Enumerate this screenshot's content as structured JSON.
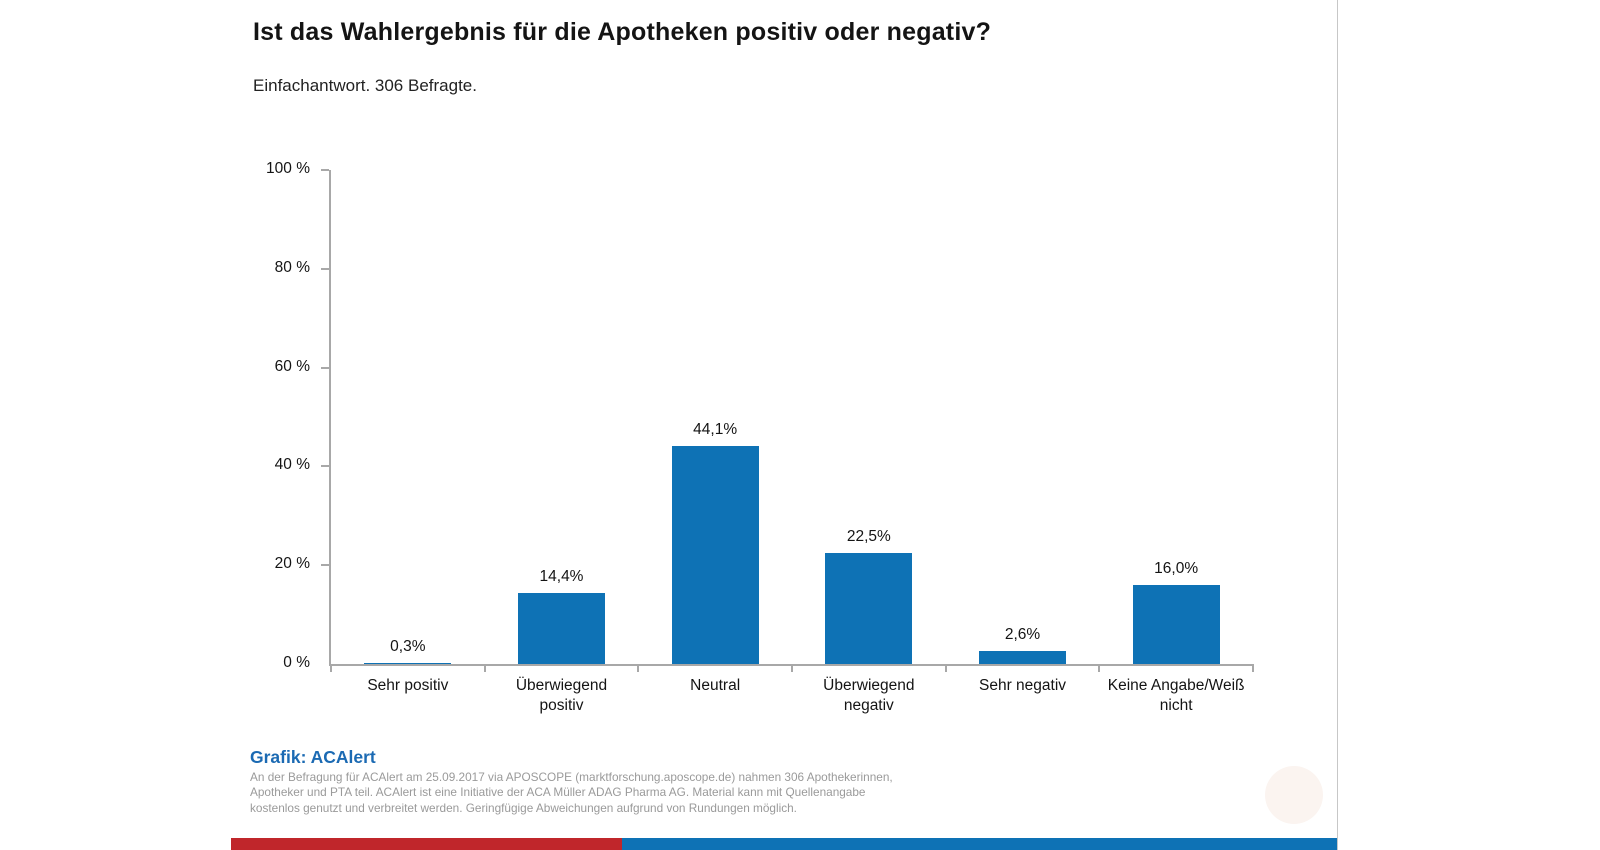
{
  "page": {
    "title": "Ist das Wahlergebnis für die Apotheken positiv oder negativ?",
    "subtitle": "Einfachantwort. 306 Befragte."
  },
  "chart_data": {
    "type": "bar",
    "title": "Ist das Wahlergebnis für die Apotheken positiv oder negativ?",
    "subtitle": "Einfachantwort. 306 Befragte.",
    "categories": [
      "Sehr positiv",
      "Überwiegend\npositiv",
      "Neutral",
      "Überwiegend\nnegativ",
      "Sehr negativ",
      "Keine Angabe/Weiß\nnicht"
    ],
    "values": [
      0.3,
      14.4,
      44.1,
      22.5,
      2.6,
      16.0
    ],
    "value_labels": [
      "0,3%",
      "14,4%",
      "44,1%",
      "22,5%",
      "2,6%",
      "16,0%"
    ],
    "xlabel": "",
    "ylabel": "",
    "ylim": [
      0,
      100
    ],
    "y_ticks": [
      0,
      20,
      40,
      60,
      80,
      100
    ],
    "y_tick_labels": [
      "0 %",
      "20 %",
      "40 %",
      "60 %",
      "80 %",
      "100 %"
    ],
    "grid": false,
    "legend": false,
    "bar_color": "#0e72b5"
  },
  "footer": {
    "credit": "Grafik: ACAlert",
    "lines": [
      "An der Befragung für ACAlert am 25.09.2017 via APOSCOPE (marktforschung.aposcope.de) nahmen 306 Apothekerinnen,",
      "Apotheker und PTA teil. ACAlert ist eine Initiative der ACA Müller ADAG Pharma AG. Material kann mit Quellenangabe",
      "kostenlos genutzt und verbreitet werden. Geringfügige Abweichungen aufgrund von Rundungen möglich."
    ]
  },
  "colors": {
    "bar": "#0e72b5",
    "axis": "#a8a8a8",
    "strip_red": "#c0262b",
    "strip_blue": "#0e72b5",
    "credit_blue": "#1b6ab3"
  }
}
